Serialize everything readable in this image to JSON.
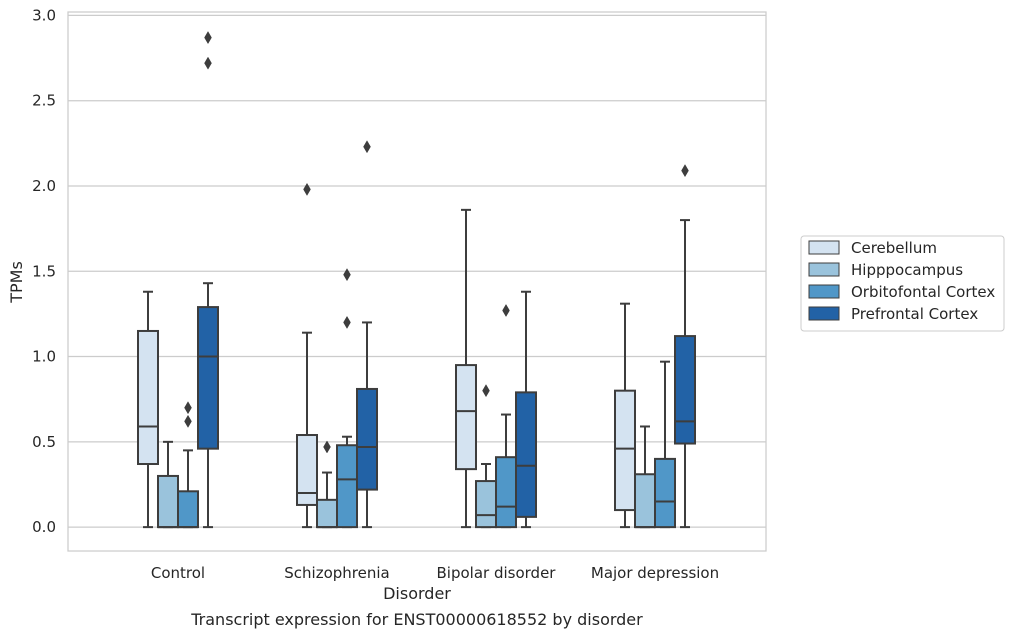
{
  "chart_data": {
    "type": "box",
    "xlabel": "Disorder",
    "ylabel": "TPMs",
    "caption": "Transcript expression for ENST00000618552 by disorder",
    "ylim": [
      -0.14,
      3.02
    ],
    "yticks": [
      "0.0",
      "0.5",
      "1.0",
      "1.5",
      "2.0",
      "2.5",
      "3.0"
    ],
    "ytick_values": [
      0,
      0.5,
      1,
      1.5,
      2,
      2.5,
      3
    ],
    "grid": "horizontal",
    "legend_position": "right",
    "categories": [
      "Control",
      "Schizophrenia",
      "Bipolar disorder",
      "Major depression"
    ],
    "series": [
      {
        "name": "Cerebellum",
        "color": "#d4e3f1",
        "boxes": [
          {
            "min": 0,
            "q1": 0.37,
            "median": 0.59,
            "q3": 1.15,
            "max": 1.38,
            "outliers": []
          },
          {
            "min": 0,
            "q1": 0.13,
            "median": 0.2,
            "q3": 0.54,
            "max": 1.14,
            "outliers": [
              1.98
            ]
          },
          {
            "min": 0,
            "q1": 0.34,
            "median": 0.68,
            "q3": 0.95,
            "max": 1.86,
            "outliers": []
          },
          {
            "min": 0,
            "q1": 0.1,
            "median": 0.46,
            "q3": 0.8,
            "max": 1.31,
            "outliers": []
          }
        ]
      },
      {
        "name": "Hipppocampus",
        "color": "#9ac3dc",
        "boxes": [
          {
            "min": 0,
            "q1": 0,
            "median": 0,
            "q3": 0.3,
            "max": 0.5,
            "outliers": []
          },
          {
            "min": 0,
            "q1": 0,
            "median": 0,
            "q3": 0.16,
            "max": 0.32,
            "outliers": [
              0.47
            ]
          },
          {
            "min": 0,
            "q1": 0,
            "median": 0.07,
            "q3": 0.27,
            "max": 0.37,
            "outliers": [
              0.8
            ]
          },
          {
            "min": 0,
            "q1": 0,
            "median": 0,
            "q3": 0.31,
            "max": 0.59,
            "outliers": []
          }
        ]
      },
      {
        "name": "Orbitofontal Cortex",
        "color": "#5097c8",
        "boxes": [
          {
            "min": 0,
            "q1": 0,
            "median": 0,
            "q3": 0.21,
            "max": 0.45,
            "outliers": [
              0.62,
              0.7
            ]
          },
          {
            "min": 0,
            "q1": 0,
            "median": 0.28,
            "q3": 0.48,
            "max": 0.53,
            "outliers": [
              1.2,
              1.48
            ]
          },
          {
            "min": 0,
            "q1": 0,
            "median": 0.12,
            "q3": 0.41,
            "max": 0.66,
            "outliers": [
              1.27
            ]
          },
          {
            "min": 0,
            "q1": 0,
            "median": 0.15,
            "q3": 0.4,
            "max": 0.97,
            "outliers": []
          }
        ]
      },
      {
        "name": "Prefrontal Cortex",
        "color": "#2262a6",
        "boxes": [
          {
            "min": 0,
            "q1": 0.46,
            "median": 1.0,
            "q3": 1.29,
            "max": 1.43,
            "outliers": [
              2.72,
              2.87
            ]
          },
          {
            "min": 0,
            "q1": 0.22,
            "median": 0.47,
            "q3": 0.81,
            "max": 1.2,
            "outliers": [
              2.23
            ]
          },
          {
            "min": 0,
            "q1": 0.06,
            "median": 0.36,
            "q3": 0.79,
            "max": 1.38,
            "outliers": []
          },
          {
            "min": 0,
            "q1": 0.49,
            "median": 0.62,
            "q3": 1.12,
            "max": 1.8,
            "outliers": [
              2.09
            ]
          }
        ]
      }
    ]
  }
}
